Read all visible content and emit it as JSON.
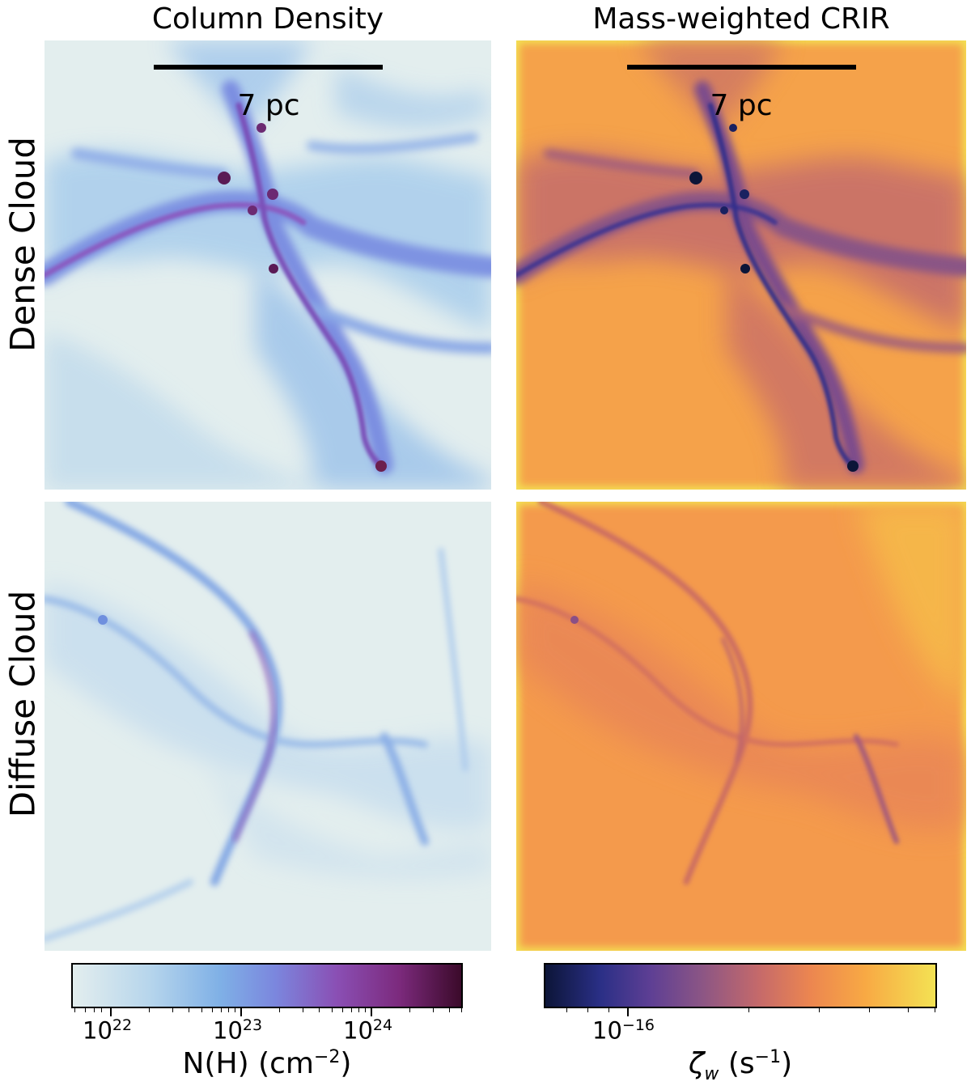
{
  "titles": {
    "left": "Column Density",
    "right": "Mass-weighted CRIR"
  },
  "rows": {
    "top": "Dense Cloud",
    "bottom": "Diffuse Cloud"
  },
  "scalebar": {
    "label": "7 pc"
  },
  "colorbars": {
    "density": {
      "label_base": "N(H) (cm",
      "label_exp": "−2",
      "label_close": ")",
      "ticks": [
        {
          "base": "10",
          "exp": "22"
        },
        {
          "base": "10",
          "exp": "23"
        },
        {
          "base": "10",
          "exp": "24"
        }
      ]
    },
    "crir": {
      "label_symbol": "ζ",
      "label_sub": "w",
      "label_base": " (s",
      "label_exp": "−1",
      "label_close": ")",
      "ticks": [
        {
          "base": "10",
          "exp": "−16"
        }
      ]
    }
  },
  "colors": {
    "density_background": "#e3eeee",
    "density_filament": "#7b87de",
    "density_core": "#7c2a7d",
    "crir_background": "#f5a24a",
    "crir_filament": "#6b4690",
    "crir_core": "#0c1538"
  }
}
